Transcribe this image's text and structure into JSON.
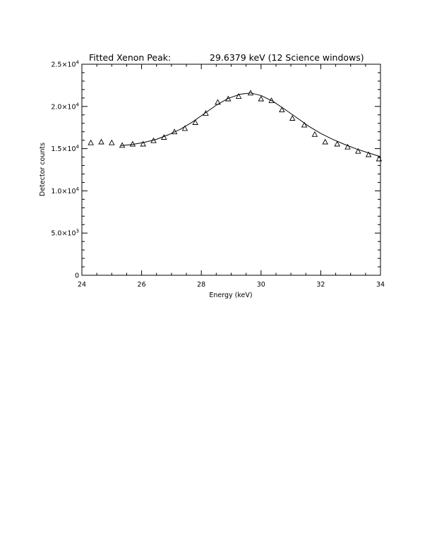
{
  "chart_data": {
    "type": "scatter",
    "title_left": "Fitted Xenon Peak:",
    "title_right": "29.6379 keV (12 Science windows)",
    "xlabel": "Energy (keV)",
    "ylabel": "Detector counts",
    "xlim": [
      24,
      34
    ],
    "ylim": [
      0,
      25000
    ],
    "x_ticks": [
      {
        "value": 24,
        "label": "24"
      },
      {
        "value": 26,
        "label": "26"
      },
      {
        "value": 28,
        "label": "28"
      },
      {
        "value": 30,
        "label": "30"
      },
      {
        "value": 32,
        "label": "32"
      },
      {
        "value": 34,
        "label": "34"
      }
    ],
    "y_ticks": [
      {
        "value": 0,
        "mantissa": "0",
        "exp": ""
      },
      {
        "value": 5000,
        "mantissa": "5.0×10",
        "exp": "3"
      },
      {
        "value": 10000,
        "mantissa": "1.0×10",
        "exp": "4"
      },
      {
        "value": 15000,
        "mantissa": "1.5×10",
        "exp": "4"
      },
      {
        "value": 20000,
        "mantissa": "2.0×10",
        "exp": "4"
      },
      {
        "value": 25000,
        "mantissa": "2.5×10",
        "exp": "4"
      }
    ],
    "series": [
      {
        "marker": "triangle",
        "x": [
          24.3,
          24.65,
          25.0,
          25.35,
          25.7,
          26.05,
          26.4,
          26.75,
          27.1,
          27.45,
          27.8,
          28.15,
          28.55,
          28.9,
          29.25,
          29.65,
          30.0,
          30.35,
          30.7,
          31.05,
          31.45,
          31.8,
          32.15,
          32.55,
          32.9,
          33.25,
          33.6,
          33.95
        ],
        "y": [
          15700,
          15800,
          15700,
          15400,
          15550,
          15550,
          15950,
          16350,
          17000,
          17400,
          18100,
          19200,
          20500,
          20900,
          21200,
          21600,
          20900,
          20700,
          19600,
          18600,
          17800,
          16700,
          15800,
          15550,
          15200,
          14700,
          14300,
          13800
        ]
      },
      {
        "style": "line",
        "x": [
          25.3,
          25.7,
          26.1,
          26.5,
          26.9,
          27.3,
          27.7,
          28.1,
          28.5,
          28.9,
          29.3,
          29.65,
          30.0,
          30.4,
          30.8,
          31.2,
          31.6,
          32.0,
          32.4,
          32.8,
          33.2,
          33.6,
          34.0
        ],
        "y": [
          15350,
          15500,
          15750,
          16100,
          16650,
          17300,
          18150,
          19150,
          20150,
          20950,
          21450,
          21600,
          21300,
          20600,
          19650,
          18650,
          17650,
          16800,
          16100,
          15500,
          14950,
          14500,
          14050
        ]
      }
    ]
  }
}
